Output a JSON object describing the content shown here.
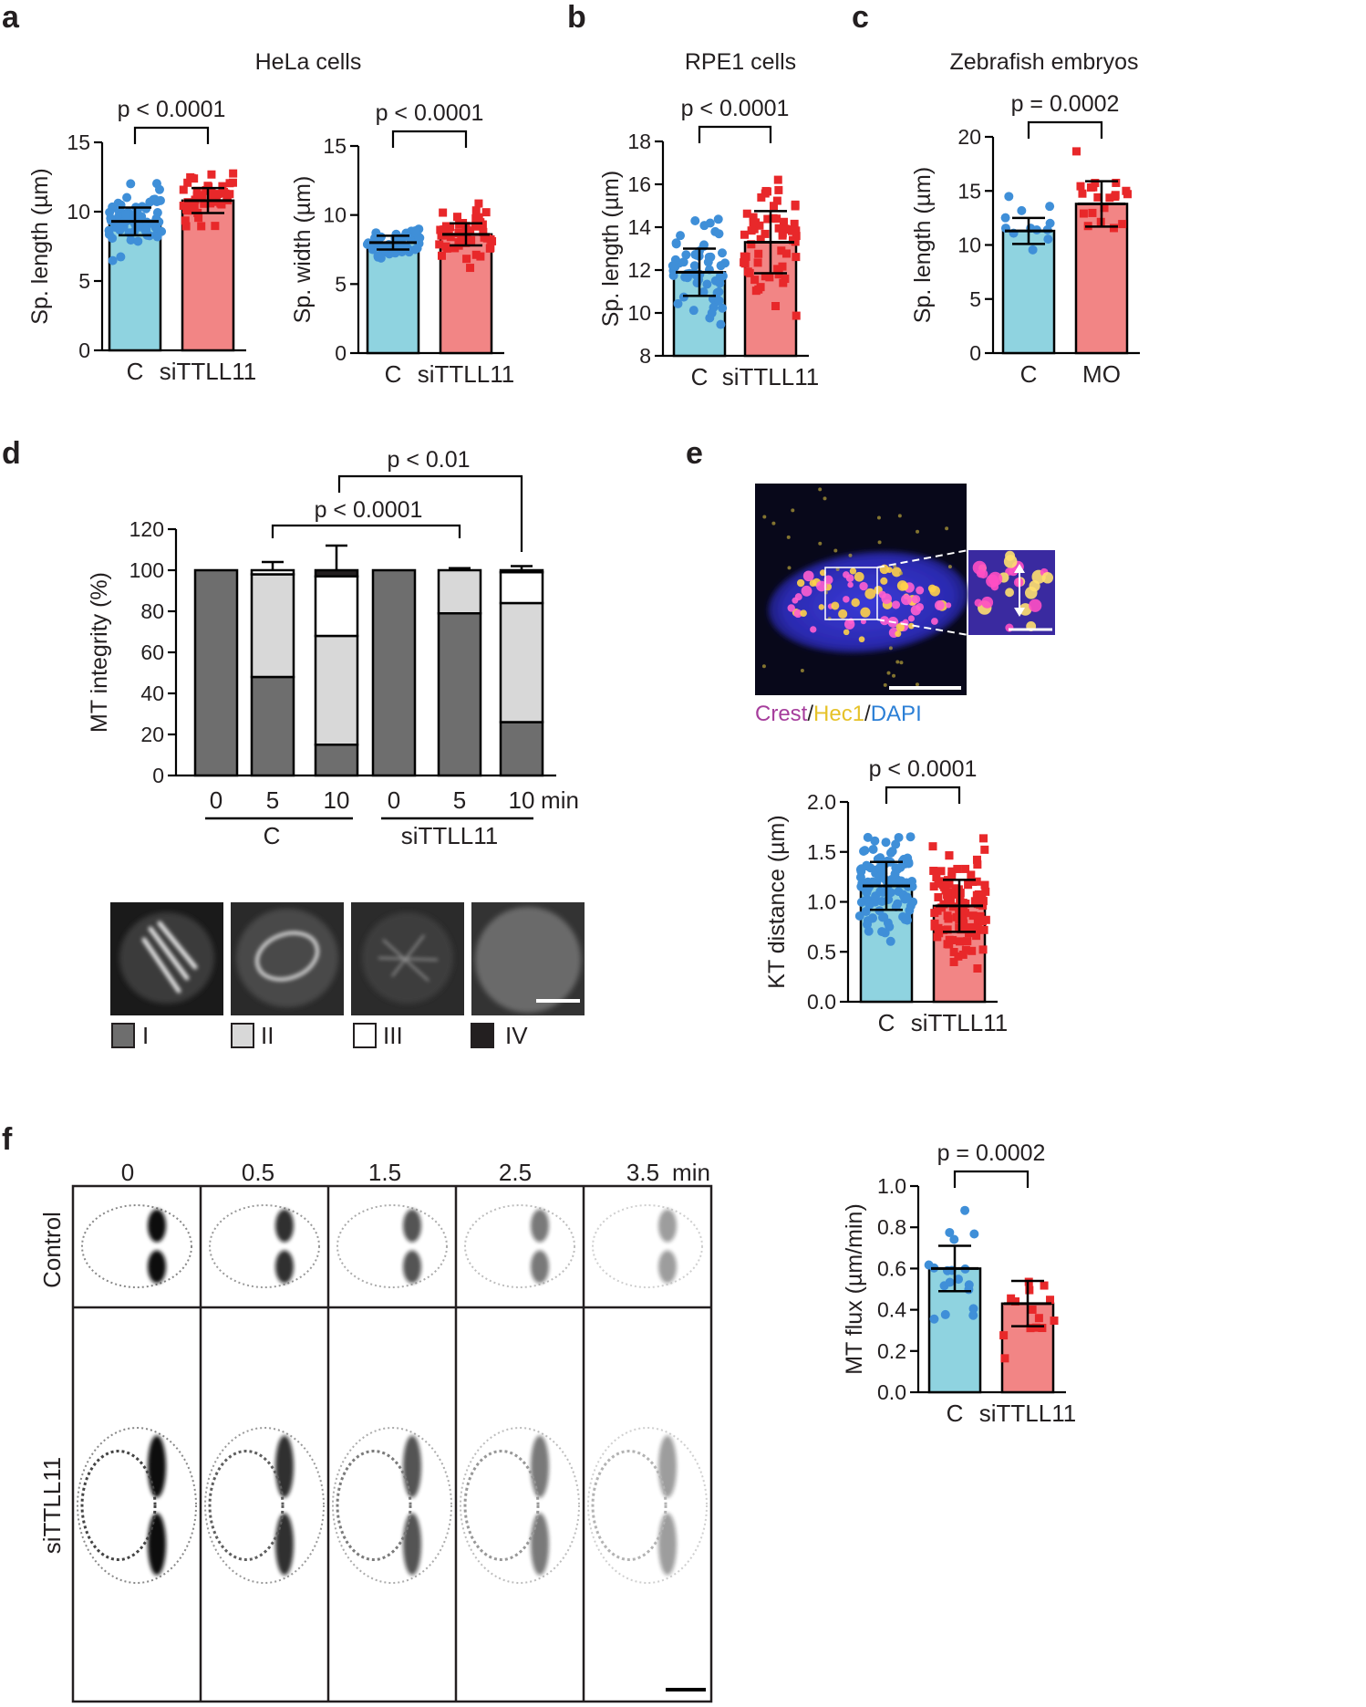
{
  "panel_labels": {
    "a": "a",
    "b": "b",
    "c": "c",
    "d": "d",
    "e": "e",
    "f": "f"
  },
  "colors": {
    "control": "#8fd3e0",
    "treated": "#f28585",
    "control_dots": "#3f8fd8",
    "treated_dots": "#e8282a",
    "stack_I": "#6e6e6e",
    "stack_II": "#d8d8d8",
    "stack_III": "#ffffff",
    "stack_IV": "#231f20"
  },
  "panel_a": {
    "title": "HeLa cells"
  },
  "panel_b": {
    "title": "RPE1 cells"
  },
  "panel_c": {
    "title": "Zebrafish embryos"
  },
  "panel_d": {
    "group_labels": [
      "C",
      "siTTLL11"
    ],
    "time_unit": "min",
    "legend": [
      "I",
      "II",
      "III",
      "IV"
    ]
  },
  "panel_e": {
    "stain_label": {
      "crest": "Crest",
      "sep1": "/",
      "hec1": "Hec1",
      "sep2": "/",
      "dapi": "DAPI"
    }
  },
  "panel_f": {
    "row_labels": [
      "Control",
      "siTTLL11"
    ],
    "timepoints": [
      "0",
      "0.5",
      "1.5",
      "2.5",
      "3.5"
    ],
    "time_unit": "min"
  },
  "chart_data": [
    {
      "id": "a1",
      "type": "bar",
      "title": "HeLa cells",
      "categories": [
        "C",
        "siTTLL11"
      ],
      "values": [
        9.3,
        10.8
      ],
      "sd": [
        1.0,
        0.9
      ],
      "ylabel": "Sp. length (µm)",
      "ylim": [
        0,
        15
      ],
      "yticks": [
        0,
        5,
        10,
        15
      ],
      "pvalue": "p < 0.0001",
      "n_points": [
        70,
        45
      ]
    },
    {
      "id": "a2",
      "type": "bar",
      "categories": [
        "C",
        "siTTLL11"
      ],
      "values": [
        8.0,
        8.6
      ],
      "sd": [
        0.5,
        0.8
      ],
      "ylabel": "Sp. width (µm)",
      "ylim": [
        0,
        15
      ],
      "yticks": [
        0,
        5,
        10,
        15
      ],
      "pvalue": "p < 0.0001",
      "n_points": [
        45,
        50
      ]
    },
    {
      "id": "b",
      "type": "bar",
      "title": "RPE1 cells",
      "categories": [
        "C",
        "siTTLL11"
      ],
      "values": [
        11.9,
        13.3
      ],
      "sd": [
        1.1,
        1.45
      ],
      "ylabel": "Sp. length (µm)",
      "ylim": [
        8,
        18
      ],
      "yticks": [
        8,
        10,
        12,
        14,
        16,
        18
      ],
      "pvalue": "p < 0.0001",
      "n_points": [
        60,
        60
      ]
    },
    {
      "id": "c",
      "type": "bar",
      "title": "Zebrafish embryos",
      "categories": [
        "C",
        "MO"
      ],
      "values": [
        11.3,
        13.8
      ],
      "sd": [
        1.2,
        2.1
      ],
      "ylabel": "Sp. length (µm)",
      "ylim": [
        0,
        20
      ],
      "yticks": [
        0,
        5,
        10,
        15,
        20
      ],
      "pvalue": "p = 0.0002",
      "n_points": [
        12,
        20
      ]
    },
    {
      "id": "d",
      "type": "bar",
      "stacked": true,
      "ylabel": "MT integrity (%)",
      "ylim": [
        0,
        120
      ],
      "yticks": [
        0,
        20,
        40,
        60,
        80,
        100,
        120
      ],
      "categories": [
        "0",
        "5",
        "10",
        "0",
        "5",
        "10"
      ],
      "groups": [
        "C",
        "C",
        "C",
        "siTTLL11",
        "siTTLL11",
        "siTTLL11"
      ],
      "series": [
        {
          "name": "I",
          "values": [
            100,
            48,
            15,
            100,
            79,
            26
          ],
          "err": [
            0,
            11,
            10,
            0,
            1,
            11
          ]
        },
        {
          "name": "II",
          "values": [
            0,
            50,
            53,
            0,
            21,
            58
          ],
          "err": [
            0,
            0,
            13,
            0,
            0,
            0
          ]
        },
        {
          "name": "III",
          "values": [
            0,
            2,
            29,
            0,
            0,
            15
          ],
          "err": [
            0,
            4,
            15,
            0,
            1,
            3
          ]
        },
        {
          "name": "IV",
          "values": [
            0,
            0,
            3,
            0,
            0,
            1
          ],
          "err": [
            0,
            0,
            0,
            0,
            0,
            0
          ]
        }
      ],
      "pvalues": [
        "p < 0.0001",
        "p < 0.01"
      ]
    },
    {
      "id": "e",
      "type": "bar",
      "categories": [
        "C",
        "siTTLL11"
      ],
      "values": [
        1.16,
        0.96
      ],
      "sd": [
        0.24,
        0.26
      ],
      "ylabel": "KT distance (µm)",
      "ylim": [
        0,
        2.0
      ],
      "yticks": [
        "0.0",
        "0.5",
        "1.0",
        "1.5",
        "2.0"
      ],
      "pvalue": "p < 0.0001",
      "n_points": [
        110,
        110
      ]
    },
    {
      "id": "f",
      "type": "bar",
      "categories": [
        "C",
        "siTTLL11"
      ],
      "values": [
        0.6,
        0.43
      ],
      "sd": [
        0.11,
        0.11
      ],
      "ylabel": "MT flux (µm/min)",
      "ylim": [
        0,
        1.0
      ],
      "yticks": [
        "0.0",
        "0.2",
        "0.4",
        "0.6",
        "0.8",
        "1.0"
      ],
      "pvalue": "p = 0.0002",
      "n_points": [
        18,
        14
      ]
    }
  ]
}
